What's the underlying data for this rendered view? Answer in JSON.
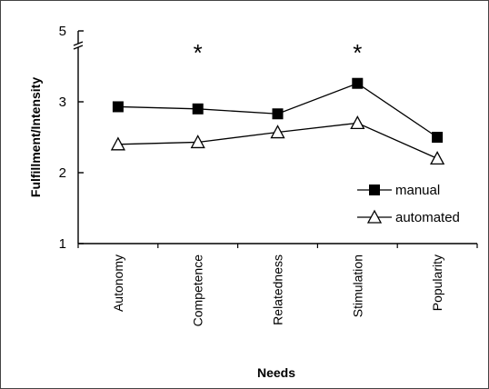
{
  "chart_data": {
    "type": "line",
    "xlabel": "Needs",
    "ylabel": "Fulfillment/Intensity",
    "categories": [
      "Autonomy",
      "Competence",
      "Relatedness",
      "Stimulation",
      "Popularity"
    ],
    "ylim": [
      1,
      5
    ],
    "y_axis_break": [
      3.5,
      5
    ],
    "yticks": [
      "1",
      "2",
      "3",
      "5"
    ],
    "grid": false,
    "legend_position": "bottom-right",
    "series": [
      {
        "name": "manual",
        "marker": "filled-square",
        "color": "#000000",
        "values": [
          2.93,
          2.9,
          2.83,
          3.26,
          2.5
        ]
      },
      {
        "name": "automated",
        "marker": "open-triangle",
        "color": "#000000",
        "values": [
          2.4,
          2.43,
          2.57,
          2.7,
          2.2
        ]
      }
    ],
    "annotations": [
      {
        "text": "*",
        "category": "Competence"
      },
      {
        "text": "*",
        "category": "Stimulation"
      }
    ]
  }
}
